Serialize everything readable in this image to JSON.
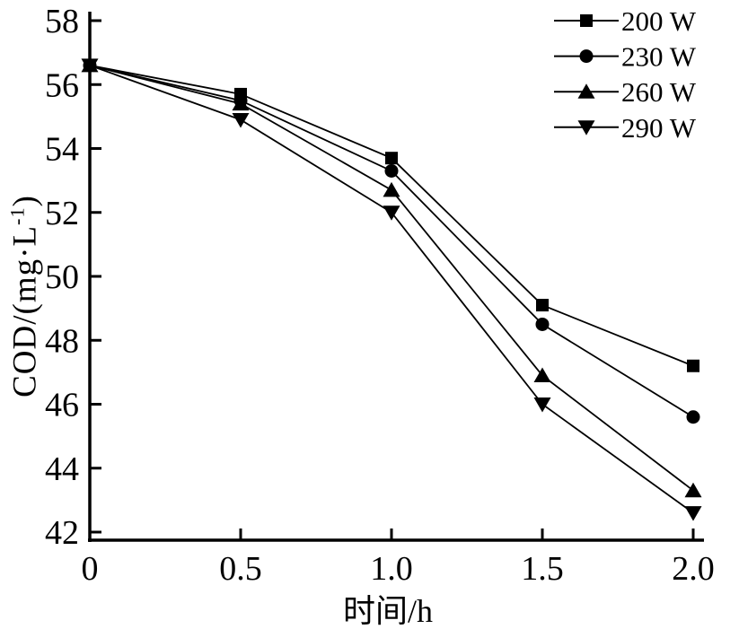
{
  "chart_data": {
    "type": "line",
    "title": "",
    "xlabel": "时间/h",
    "ylabel": "COD/(mg·L⁻¹)",
    "ylabel_parts": {
      "main": "COD/(mg·L",
      "sup": "-1",
      "end": ")"
    },
    "x": [
      0,
      0.5,
      1.0,
      1.5,
      2.0
    ],
    "x_tick_labels": [
      "0",
      "0.5",
      "1.0",
      "1.5",
      "2.0"
    ],
    "y_ticks": [
      42,
      44,
      46,
      48,
      50,
      52,
      54,
      56,
      58
    ],
    "xlim": [
      0,
      2.0
    ],
    "ylim": [
      42,
      58
    ],
    "grid": false,
    "legend_position": "top-right",
    "series": [
      {
        "name": "200 W",
        "marker": "square",
        "values": [
          56.6,
          55.7,
          53.7,
          49.1,
          47.2
        ]
      },
      {
        "name": "230 W",
        "marker": "circle",
        "values": [
          56.6,
          55.5,
          53.3,
          48.5,
          45.6
        ]
      },
      {
        "name": "260 W",
        "marker": "triangle-up",
        "values": [
          56.6,
          55.4,
          52.7,
          46.9,
          43.3
        ]
      },
      {
        "name": "290 W",
        "marker": "triangle-down",
        "values": [
          56.6,
          54.9,
          52.0,
          46.0,
          42.6
        ]
      }
    ],
    "colors": {
      "line": "#000000",
      "marker": "#000000",
      "text": "#000000",
      "background": "#ffffff"
    }
  }
}
